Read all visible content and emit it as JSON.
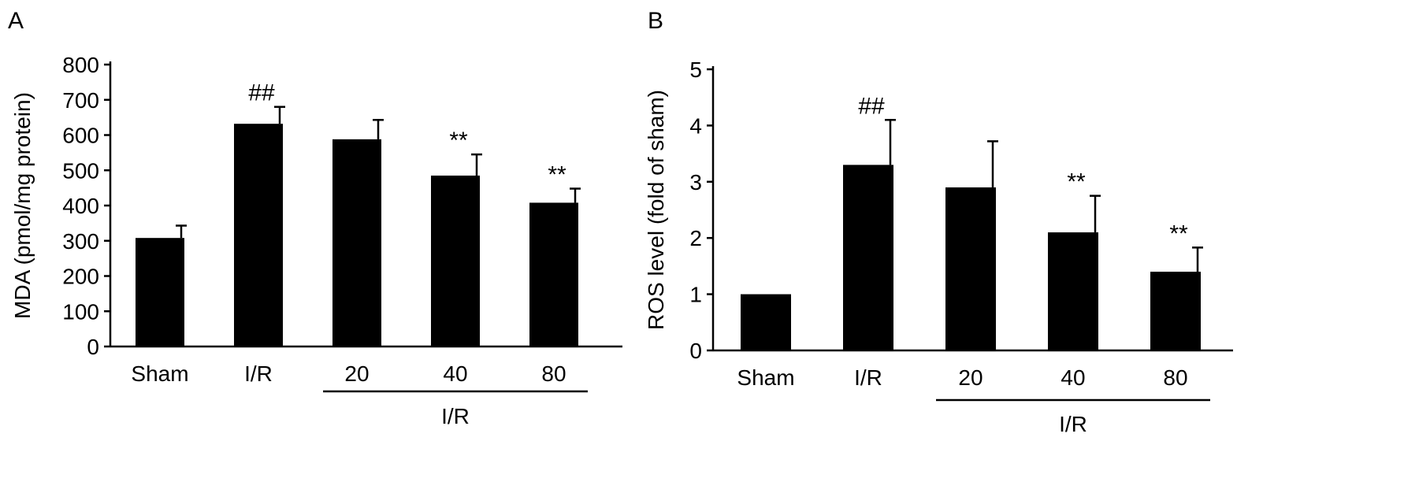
{
  "chart_data": [
    {
      "type": "bar",
      "panel_label": "A",
      "categories": [
        "Sham",
        "I/R",
        "20",
        "40",
        "80"
      ],
      "values": [
        308,
        632,
        588,
        485,
        408
      ],
      "errors": [
        35,
        48,
        55,
        60,
        40
      ],
      "annotations": [
        "",
        "##",
        "",
        "**",
        "**"
      ],
      "ylabel": "MDA (pmol/mg protein)",
      "ylim": [
        0,
        800
      ],
      "yticks": [
        0,
        100,
        200,
        300,
        400,
        500,
        600,
        700,
        800
      ],
      "group_label": "I/R",
      "group_start": 2,
      "group_end": 4,
      "color": "#000000",
      "grid": false
    },
    {
      "type": "bar",
      "panel_label": "B",
      "categories": [
        "Sham",
        "I/R",
        "20",
        "40",
        "80"
      ],
      "values": [
        1.0,
        3.3,
        2.9,
        2.1,
        1.4
      ],
      "errors": [
        0,
        0.8,
        0.82,
        0.65,
        0.43
      ],
      "annotations": [
        "",
        "##",
        "",
        "**",
        "**"
      ],
      "ylabel": "ROS level (fold of sham)",
      "ylim": [
        0,
        5
      ],
      "yticks": [
        0,
        1,
        2,
        3,
        4,
        5
      ],
      "group_label": "I/R",
      "group_start": 2,
      "group_end": 4,
      "color": "#000000",
      "grid": false
    }
  ]
}
